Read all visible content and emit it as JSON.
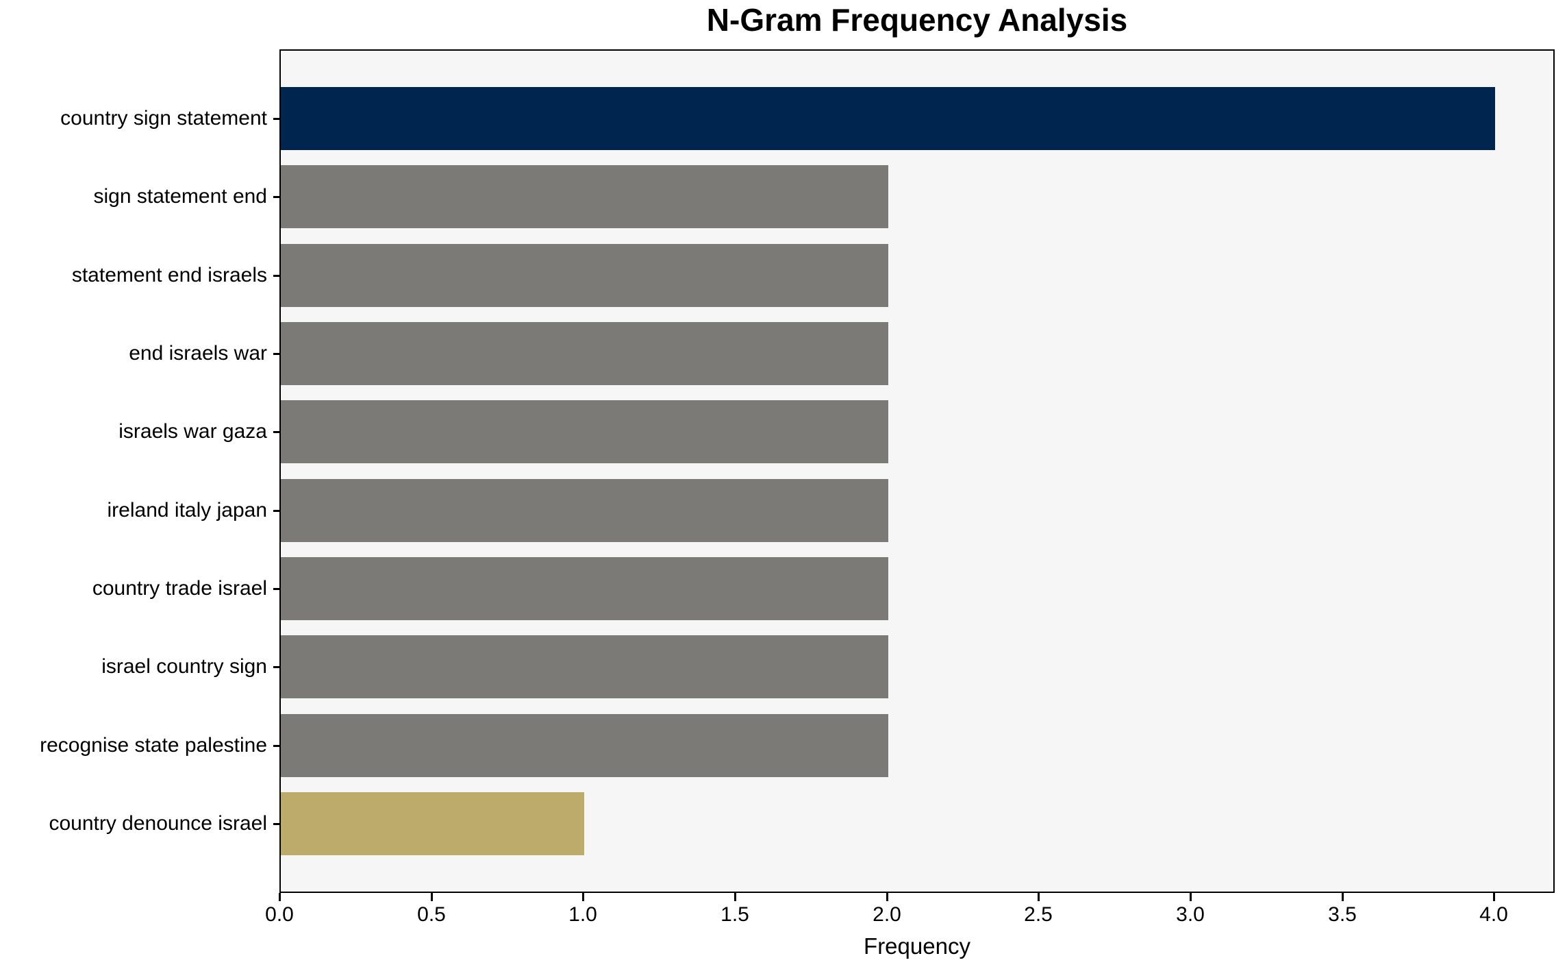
{
  "title": "N-Gram Frequency Analysis",
  "chart_data": {
    "type": "bar",
    "orientation": "horizontal",
    "title": "N-Gram Frequency Analysis",
    "xlabel": "Frequency",
    "ylabel": "",
    "categories": [
      "country sign statement",
      "sign statement end",
      "statement end israels",
      "end israels war",
      "israels war gaza",
      "ireland italy japan",
      "country trade israel",
      "israel country sign",
      "recognise state palestine",
      "country denounce israel"
    ],
    "values": [
      4,
      2,
      2,
      2,
      2,
      2,
      2,
      2,
      2,
      1
    ],
    "bar_colors": [
      "#00254e",
      "#7b7a76",
      "#7b7a76",
      "#7b7a76",
      "#7b7a76",
      "#7b7a76",
      "#7b7a76",
      "#7b7a76",
      "#7b7a76",
      "#bcab6b"
    ],
    "xlim": [
      0,
      4.2
    ],
    "xticks": [
      0.0,
      0.5,
      1.0,
      1.5,
      2.0,
      2.5,
      3.0,
      3.5,
      4.0
    ],
    "xtick_labels": [
      "0.0",
      "0.5",
      "1.0",
      "1.5",
      "2.0",
      "2.5",
      "3.0",
      "3.5",
      "4.0"
    ],
    "grid": false,
    "legend": null,
    "plot_background": "#f6f6f7",
    "axis_color": "#000000",
    "figure_background": "#ffffff"
  }
}
